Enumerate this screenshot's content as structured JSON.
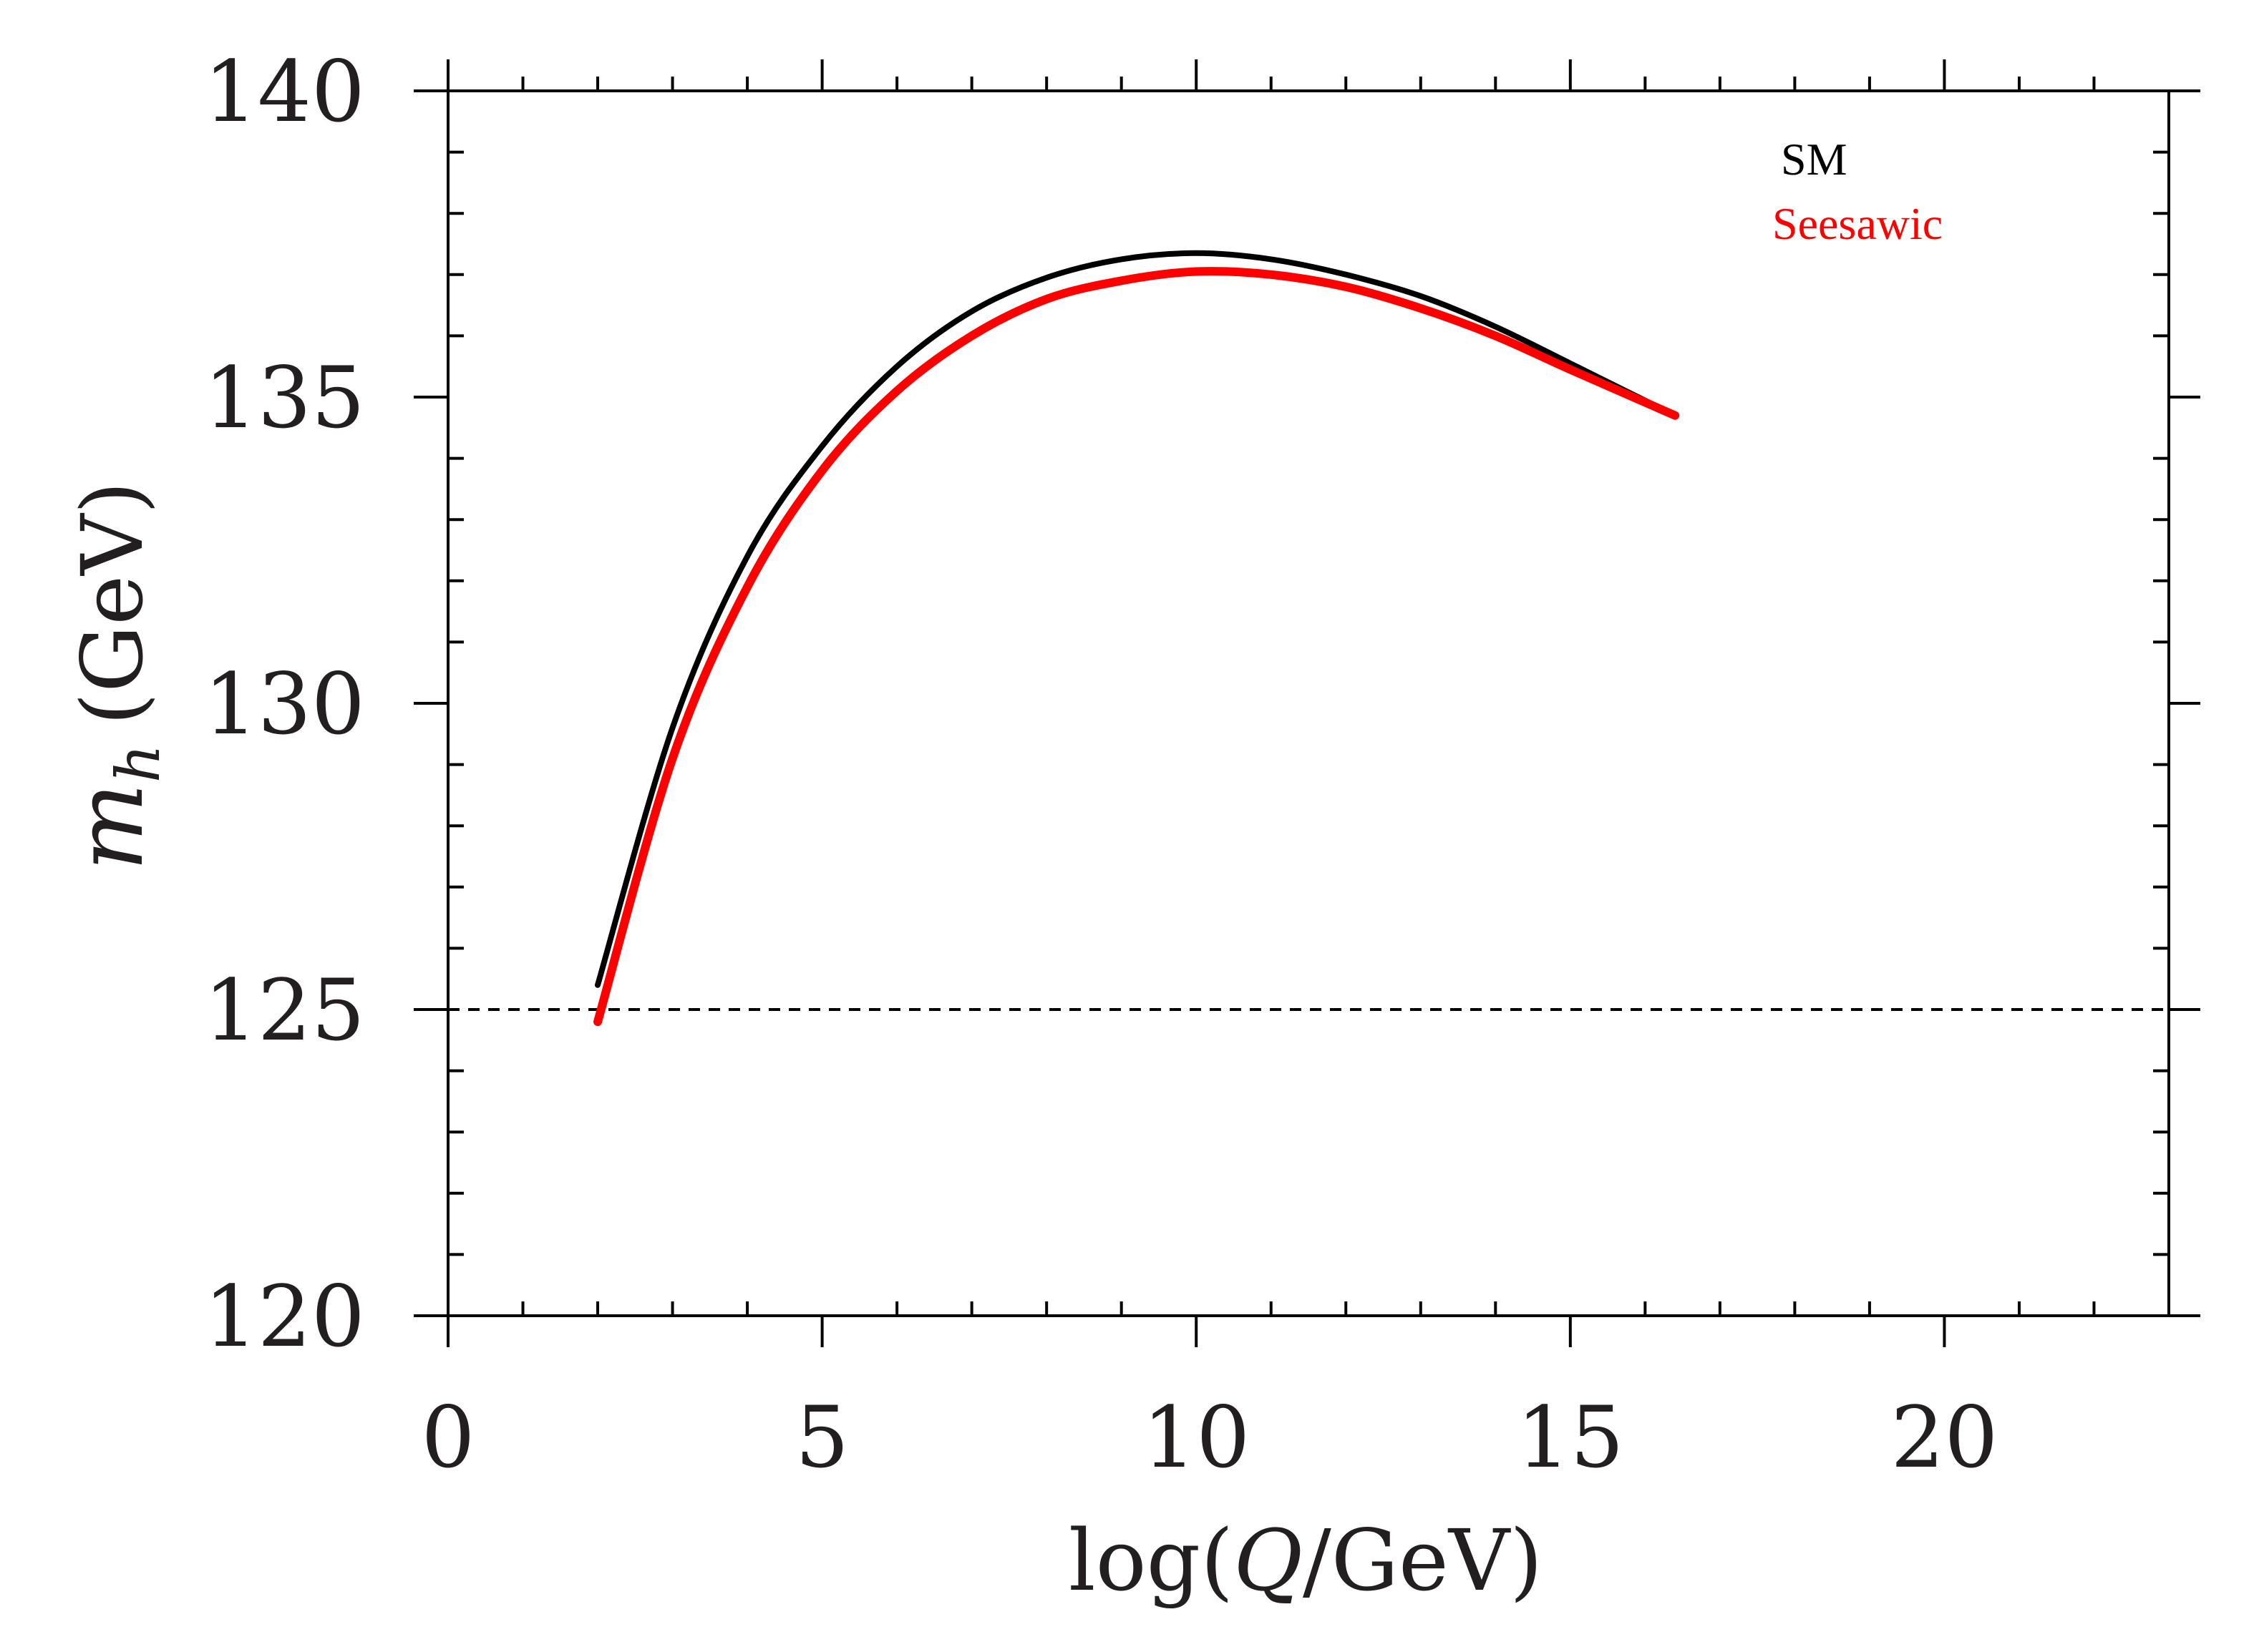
{
  "chart_data": {
    "type": "line",
    "title": "",
    "xlabel": {
      "prefix": "log(",
      "variable": "Q",
      "suffix": "/GeV)"
    },
    "ylabel": {
      "symbol": "m",
      "subscript": "h",
      "unit": "(GeV)"
    },
    "xlim": [
      0,
      23
    ],
    "ylim": [
      120,
      140
    ],
    "x_ticks": [
      0,
      5,
      10,
      15,
      20
    ],
    "x_tick_labels": [
      "0",
      "5",
      "10",
      "15",
      "20"
    ],
    "y_ticks": [
      120,
      125,
      130,
      135,
      140
    ],
    "y_tick_labels": [
      "120",
      "125",
      "130",
      "135",
      "140"
    ],
    "x_minor_step": 1,
    "y_minor_step": 1,
    "legend_position": "top-right",
    "reference_line": {
      "y": 125,
      "style": "dashed",
      "color": "#000000"
    },
    "series": [
      {
        "name": "SM",
        "color": "#000000",
        "x": [
          2.0,
          3.0,
          4.0,
          5.0,
          6.0,
          7.0,
          8.0,
          9.0,
          10.0,
          11.0,
          12.0,
          13.0,
          14.0,
          15.0,
          16.4
        ],
        "y": [
          125.4,
          129.6,
          132.4,
          134.2,
          135.5,
          136.4,
          136.95,
          137.25,
          137.35,
          137.25,
          137.0,
          136.65,
          136.15,
          135.55,
          134.7
        ]
      },
      {
        "name": "Seesawic",
        "color": "#ff0000",
        "x": [
          2.0,
          3.0,
          4.0,
          5.0,
          6.0,
          7.0,
          8.0,
          9.0,
          10.0,
          11.0,
          12.0,
          13.0,
          14.0,
          15.0,
          16.4
        ],
        "y": [
          124.8,
          129.1,
          131.9,
          133.8,
          135.1,
          136.0,
          136.6,
          136.9,
          137.05,
          137.0,
          136.8,
          136.45,
          136.0,
          135.45,
          134.7
        ]
      }
    ]
  }
}
